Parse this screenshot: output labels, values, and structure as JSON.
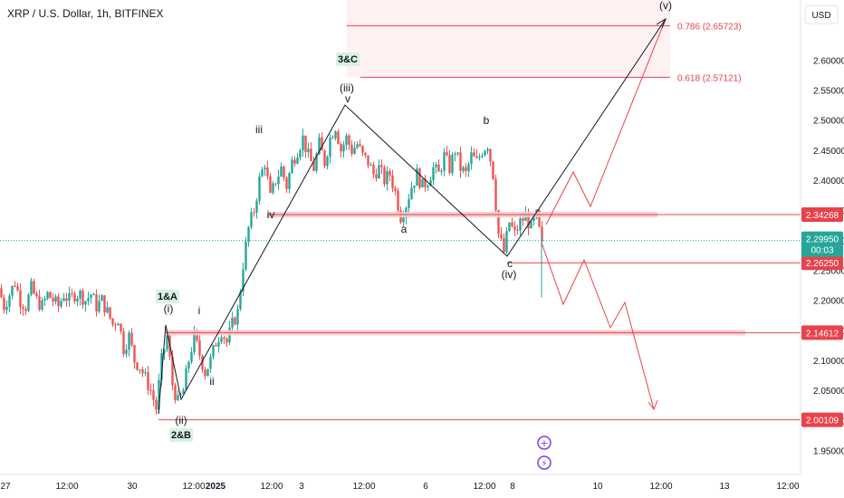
{
  "title": "XRP / U.S. Dollar, 1h, BITFINEX",
  "currency": "USD",
  "colors": {
    "up": "#26a69a",
    "down": "#ef5350",
    "line": "#131722",
    "red": "#e8434b",
    "purple": "#7b3fe4"
  },
  "chart_data": {
    "type": "candlestick",
    "ylim": [
      1.91,
      2.7
    ],
    "y_ticks": [
      "1.95000",
      "2.00000",
      "2.05000",
      "2.10000",
      "2.15000",
      "2.20000",
      "2.25000",
      "2.30000",
      "2.35000",
      "2.40000",
      "2.45000",
      "2.50000",
      "2.55000",
      "2.60000"
    ],
    "x_ticks": [
      "27",
      "12:00",
      "30",
      "12:00",
      "2025",
      "12:00",
      "3",
      "12:00",
      "6",
      "12:00",
      "8",
      "10",
      "12:00",
      "13",
      "12:00"
    ],
    "current_price": {
      "value": "2.29950",
      "countdown": "00:03"
    },
    "price_levels": [
      {
        "label": "2.34268",
        "value": 2.34268
      },
      {
        "label": "2.26250",
        "value": 2.2625
      },
      {
        "label": "2.14612",
        "value": 2.14612
      },
      {
        "label": "2.00109",
        "value": 2.00109
      }
    ],
    "fib_levels": [
      {
        "label": "0.786 (2.65723)",
        "value": 2.65723
      },
      {
        "label": "0.618 (2.57121)",
        "value": 2.57121
      }
    ],
    "wave_labels": [
      "(v)",
      "(iii)",
      "v",
      "iii",
      "iv",
      "a",
      "b",
      "c",
      "(iv)",
      "i",
      "(i)",
      "ii",
      "(ii)"
    ],
    "box_labels": [
      "3&C",
      "1&A",
      "2&B"
    ],
    "close_path": [
      [
        0,
        2.22
      ],
      [
        6,
        2.19
      ],
      [
        12,
        2.21
      ],
      [
        18,
        2.23
      ],
      [
        24,
        2.2
      ],
      [
        30,
        2.19
      ],
      [
        36,
        2.22
      ],
      [
        42,
        2.2
      ],
      [
        48,
        2.19
      ],
      [
        54,
        2.21
      ],
      [
        60,
        2.2
      ],
      [
        66,
        2.19
      ],
      [
        72,
        2.21
      ],
      [
        78,
        2.2
      ],
      [
        84,
        2.21
      ],
      [
        90,
        2.21
      ],
      [
        96,
        2.2
      ],
      [
        102,
        2.21
      ],
      [
        108,
        2.19
      ],
      [
        114,
        2.2
      ],
      [
        120,
        2.18
      ],
      [
        126,
        2.16
      ],
      [
        132,
        2.17
      ],
      [
        138,
        2.12
      ],
      [
        144,
        2.14
      ],
      [
        150,
        2.1
      ],
      [
        156,
        2.09
      ],
      [
        162,
        2.07
      ],
      [
        168,
        2.05
      ],
      [
        174,
        2.02
      ],
      [
        180,
        2.1
      ],
      [
        186,
        2.14
      ],
      [
        192,
        2.06
      ],
      [
        198,
        2.03
      ],
      [
        204,
        2.05
      ],
      [
        210,
        2.1
      ],
      [
        216,
        2.14
      ],
      [
        222,
        2.11
      ],
      [
        228,
        2.08
      ],
      [
        234,
        2.1
      ],
      [
        240,
        2.13
      ],
      [
        246,
        2.15
      ],
      [
        252,
        2.13
      ],
      [
        258,
        2.16
      ],
      [
        264,
        2.18
      ],
      [
        270,
        2.26
      ],
      [
        276,
        2.32
      ],
      [
        282,
        2.35
      ],
      [
        288,
        2.4
      ],
      [
        294,
        2.43
      ],
      [
        300,
        2.37
      ],
      [
        306,
        2.4
      ],
      [
        312,
        2.42
      ],
      [
        318,
        2.39
      ],
      [
        324,
        2.43
      ],
      [
        330,
        2.45
      ],
      [
        336,
        2.47
      ],
      [
        342,
        2.44
      ],
      [
        348,
        2.42
      ],
      [
        354,
        2.46
      ],
      [
        360,
        2.43
      ],
      [
        366,
        2.47
      ],
      [
        372,
        2.49
      ],
      [
        378,
        2.45
      ],
      [
        384,
        2.47
      ],
      [
        390,
        2.45
      ],
      [
        396,
        2.46
      ],
      [
        402,
        2.44
      ],
      [
        408,
        2.43
      ],
      [
        414,
        2.41
      ],
      [
        420,
        2.42
      ],
      [
        426,
        2.4
      ],
      [
        432,
        2.41
      ],
      [
        438,
        2.38
      ],
      [
        444,
        2.34
      ],
      [
        450,
        2.36
      ],
      [
        456,
        2.39
      ],
      [
        462,
        2.41
      ],
      [
        468,
        2.39
      ],
      [
        474,
        2.4
      ],
      [
        480,
        2.42
      ],
      [
        486,
        2.41
      ],
      [
        492,
        2.44
      ],
      [
        498,
        2.42
      ],
      [
        504,
        2.45
      ],
      [
        510,
        2.42
      ],
      [
        516,
        2.41
      ],
      [
        522,
        2.44
      ],
      [
        528,
        2.43
      ],
      [
        534,
        2.45
      ],
      [
        540,
        2.46
      ],
      [
        546,
        2.41
      ],
      [
        552,
        2.31
      ],
      [
        558,
        2.28
      ],
      [
        564,
        2.33
      ],
      [
        570,
        2.31
      ],
      [
        576,
        2.33
      ],
      [
        582,
        2.34
      ],
      [
        588,
        2.32
      ],
      [
        594,
        2.34
      ],
      [
        600,
        2.29
      ]
    ]
  }
}
